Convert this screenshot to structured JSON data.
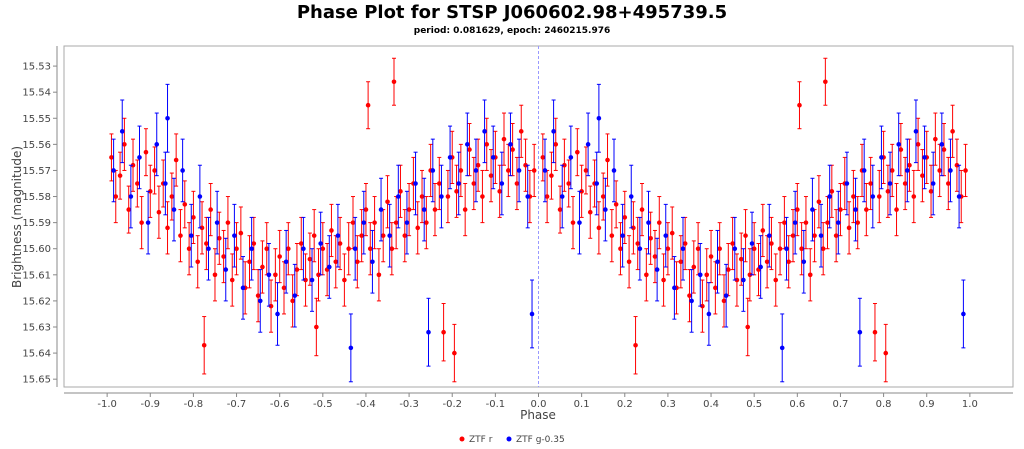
{
  "chart_data": {
    "type": "scatter",
    "title": "Phase Plot for STSP J060602.98+495739.5",
    "subtitle": "period: 0.081629, epoch: 2460215.976",
    "xlabel": "Phase",
    "ylabel": "Brightness (magnitude)",
    "xlim": [
      -1.1,
      1.1
    ],
    "ylim": [
      15.5223,
      15.653
    ],
    "y_inverted": true,
    "xticks": [
      "-1.0",
      "-0.9",
      "-0.8",
      "-0.7",
      "-0.6",
      "-0.5",
      "-0.4",
      "-0.3",
      "-0.2",
      "-0.1",
      "0.0",
      "0.1",
      "0.2",
      "0.3",
      "0.4",
      "0.5",
      "0.6",
      "0.7",
      "0.8",
      "0.9",
      "1.0"
    ],
    "yticks": [
      "15.53",
      "15.54",
      "15.55",
      "15.56",
      "15.57",
      "15.58",
      "15.59",
      "15.60",
      "15.61",
      "15.62",
      "15.63",
      "15.64",
      "15.65"
    ],
    "phase_repeated_at_minus_one": true,
    "legend_position": "bottom",
    "series": [
      {
        "name": "ZTF r",
        "color": "#ff0000",
        "points_phase_mag_err": [
          [
            0.01,
            15.565,
            0.009
          ],
          [
            0.02,
            15.58,
            0.01
          ],
          [
            0.03,
            15.572,
            0.009
          ],
          [
            0.04,
            15.56,
            0.01
          ],
          [
            0.05,
            15.585,
            0.009
          ],
          [
            0.06,
            15.568,
            0.01
          ],
          [
            0.07,
            15.575,
            0.009
          ],
          [
            0.08,
            15.59,
            0.01
          ],
          [
            0.09,
            15.563,
            0.009
          ],
          [
            0.1,
            15.578,
            0.01
          ],
          [
            0.11,
            15.57,
            0.009
          ],
          [
            0.12,
            15.586,
            0.01
          ],
          [
            0.13,
            15.575,
            0.009
          ],
          [
            0.14,
            15.592,
            0.01
          ],
          [
            0.15,
            15.58,
            0.009
          ],
          [
            0.16,
            15.566,
            0.01
          ],
          [
            0.17,
            15.595,
            0.01
          ],
          [
            0.18,
            15.583,
            0.009
          ],
          [
            0.19,
            15.6,
            0.01
          ],
          [
            0.2,
            15.588,
            0.01
          ],
          [
            0.21,
            15.605,
            0.01
          ],
          [
            0.22,
            15.592,
            0.01
          ],
          [
            0.225,
            15.637,
            0.011
          ],
          [
            0.23,
            15.598,
            0.01
          ],
          [
            0.24,
            15.585,
            0.01
          ],
          [
            0.25,
            15.61,
            0.01
          ],
          [
            0.26,
            15.596,
            0.01
          ],
          [
            0.27,
            15.603,
            0.01
          ],
          [
            0.28,
            15.59,
            0.01
          ],
          [
            0.29,
            15.612,
            0.01
          ],
          [
            0.3,
            15.6,
            0.01
          ],
          [
            0.31,
            15.594,
            0.01
          ],
          [
            0.32,
            15.615,
            0.01
          ],
          [
            0.33,
            15.605,
            0.01
          ],
          [
            0.34,
            15.598,
            0.01
          ],
          [
            0.35,
            15.618,
            0.01
          ],
          [
            0.36,
            15.607,
            0.01
          ],
          [
            0.37,
            15.6,
            0.01
          ],
          [
            0.38,
            15.622,
            0.01
          ],
          [
            0.39,
            15.61,
            0.01
          ],
          [
            0.4,
            15.603,
            0.01
          ],
          [
            0.41,
            15.615,
            0.01
          ],
          [
            0.42,
            15.6,
            0.01
          ],
          [
            0.43,
            15.62,
            0.01
          ],
          [
            0.44,
            15.608,
            0.01
          ],
          [
            0.45,
            15.598,
            0.01
          ],
          [
            0.46,
            15.612,
            0.01
          ],
          [
            0.47,
            15.604,
            0.01
          ],
          [
            0.48,
            15.595,
            0.01
          ],
          [
            0.485,
            15.63,
            0.011
          ],
          [
            0.49,
            15.61,
            0.01
          ],
          [
            0.5,
            15.6,
            0.01
          ],
          [
            0.51,
            15.608,
            0.01
          ],
          [
            0.52,
            15.593,
            0.01
          ],
          [
            0.53,
            15.605,
            0.01
          ],
          [
            0.54,
            15.598,
            0.01
          ],
          [
            0.55,
            15.612,
            0.01
          ],
          [
            0.56,
            15.6,
            0.01
          ],
          [
            0.57,
            15.59,
            0.01
          ],
          [
            0.58,
            15.605,
            0.01
          ],
          [
            0.59,
            15.595,
            0.01
          ],
          [
            0.6,
            15.585,
            0.01
          ],
          [
            0.605,
            15.545,
            0.009
          ],
          [
            0.61,
            15.6,
            0.01
          ],
          [
            0.62,
            15.59,
            0.01
          ],
          [
            0.63,
            15.61,
            0.01
          ],
          [
            0.64,
            15.595,
            0.01
          ],
          [
            0.65,
            15.582,
            0.01
          ],
          [
            0.66,
            15.6,
            0.01
          ],
          [
            0.665,
            15.536,
            0.009
          ],
          [
            0.67,
            15.59,
            0.01
          ],
          [
            0.68,
            15.578,
            0.01
          ],
          [
            0.69,
            15.595,
            0.01
          ],
          [
            0.7,
            15.585,
            0.01
          ],
          [
            0.71,
            15.575,
            0.01
          ],
          [
            0.72,
            15.592,
            0.01
          ],
          [
            0.73,
            15.58,
            0.01
          ],
          [
            0.74,
            15.59,
            0.01
          ],
          [
            0.75,
            15.57,
            0.01
          ],
          [
            0.76,
            15.585,
            0.01
          ],
          [
            0.77,
            15.575,
            0.01
          ],
          [
            0.78,
            15.632,
            0.011
          ],
          [
            0.79,
            15.58,
            0.01
          ],
          [
            0.8,
            15.565,
            0.01
          ],
          [
            0.805,
            15.64,
            0.011
          ],
          [
            0.81,
            15.578,
            0.01
          ],
          [
            0.82,
            15.57,
            0.01
          ],
          [
            0.83,
            15.585,
            0.01
          ],
          [
            0.84,
            15.562,
            0.01
          ],
          [
            0.85,
            15.575,
            0.01
          ],
          [
            0.86,
            15.568,
            0.01
          ],
          [
            0.87,
            15.58,
            0.01
          ],
          [
            0.88,
            15.56,
            0.01
          ],
          [
            0.89,
            15.572,
            0.01
          ],
          [
            0.9,
            15.565,
            0.01
          ],
          [
            0.91,
            15.578,
            0.01
          ],
          [
            0.92,
            15.558,
            0.01
          ],
          [
            0.93,
            15.57,
            0.01
          ],
          [
            0.94,
            15.562,
            0.01
          ],
          [
            0.95,
            15.575,
            0.01
          ],
          [
            0.96,
            15.555,
            0.01
          ],
          [
            0.97,
            15.568,
            0.01
          ],
          [
            0.98,
            15.58,
            0.01
          ],
          [
            0.99,
            15.57,
            0.01
          ]
        ]
      },
      {
        "name": "ZTF g-0.35",
        "color": "#0000ff",
        "points_phase_mag_err": [
          [
            0.015,
            15.57,
            0.012
          ],
          [
            0.035,
            15.555,
            0.012
          ],
          [
            0.055,
            15.58,
            0.012
          ],
          [
            0.075,
            15.565,
            0.012
          ],
          [
            0.095,
            15.59,
            0.012
          ],
          [
            0.115,
            15.56,
            0.012
          ],
          [
            0.135,
            15.575,
            0.012
          ],
          [
            0.14,
            15.55,
            0.013
          ],
          [
            0.155,
            15.585,
            0.012
          ],
          [
            0.175,
            15.57,
            0.012
          ],
          [
            0.195,
            15.595,
            0.012
          ],
          [
            0.215,
            15.58,
            0.012
          ],
          [
            0.235,
            15.6,
            0.012
          ],
          [
            0.255,
            15.59,
            0.012
          ],
          [
            0.275,
            15.608,
            0.012
          ],
          [
            0.295,
            15.595,
            0.012
          ],
          [
            0.315,
            15.615,
            0.012
          ],
          [
            0.335,
            15.6,
            0.012
          ],
          [
            0.355,
            15.62,
            0.012
          ],
          [
            0.375,
            15.61,
            0.012
          ],
          [
            0.395,
            15.625,
            0.012
          ],
          [
            0.415,
            15.605,
            0.012
          ],
          [
            0.435,
            15.618,
            0.012
          ],
          [
            0.455,
            15.6,
            0.012
          ],
          [
            0.475,
            15.612,
            0.012
          ],
          [
            0.495,
            15.598,
            0.012
          ],
          [
            0.515,
            15.607,
            0.012
          ],
          [
            0.535,
            15.595,
            0.012
          ],
          [
            0.565,
            15.638,
            0.013
          ],
          [
            0.575,
            15.6,
            0.012
          ],
          [
            0.595,
            15.59,
            0.012
          ],
          [
            0.615,
            15.605,
            0.012
          ],
          [
            0.635,
            15.585,
            0.012
          ],
          [
            0.655,
            15.595,
            0.012
          ],
          [
            0.675,
            15.58,
            0.012
          ],
          [
            0.695,
            15.59,
            0.012
          ],
          [
            0.715,
            15.575,
            0.012
          ],
          [
            0.735,
            15.585,
            0.012
          ],
          [
            0.745,
            15.632,
            0.013
          ],
          [
            0.755,
            15.57,
            0.012
          ],
          [
            0.775,
            15.58,
            0.012
          ],
          [
            0.795,
            15.565,
            0.012
          ],
          [
            0.815,
            15.575,
            0.012
          ],
          [
            0.835,
            15.56,
            0.012
          ],
          [
            0.855,
            15.57,
            0.012
          ],
          [
            0.875,
            15.555,
            0.012
          ],
          [
            0.895,
            15.565,
            0.012
          ],
          [
            0.915,
            15.575,
            0.012
          ],
          [
            0.935,
            15.56,
            0.012
          ],
          [
            0.955,
            15.57,
            0.012
          ],
          [
            0.975,
            15.58,
            0.012
          ],
          [
            0.985,
            15.625,
            0.013
          ]
        ]
      }
    ]
  }
}
